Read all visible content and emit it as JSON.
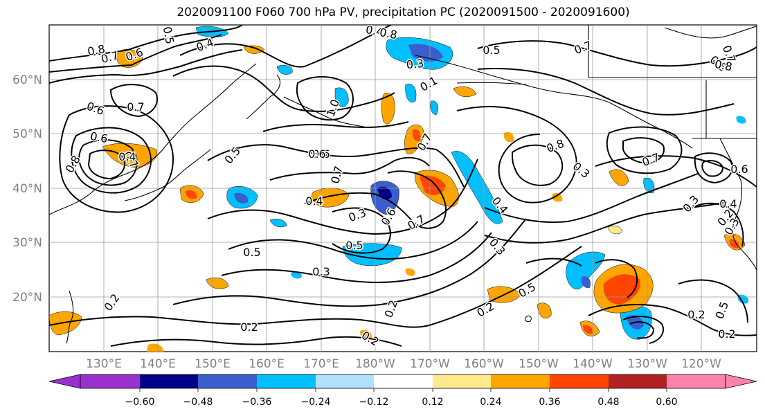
{
  "title": "2020091100 F060 700 hPa PV, precipitation PC (2020091500 - 2020091600)",
  "map": {
    "lat_labels": [
      "60°N",
      "50°N",
      "40°N",
      "30°N",
      "20°N"
    ],
    "lon_labels": [
      "130°E",
      "140°E",
      "150°E",
      "160°E",
      "170°E",
      "180°W",
      "170°W",
      "160°W",
      "150°W",
      "140°W",
      "130°W",
      "120°W"
    ],
    "contour_labels": [
      "0.8",
      "0.7",
      "0.6",
      "0.5",
      "0.4",
      "0.6",
      "0.8",
      "0.7",
      "0.6",
      "0.7",
      "0.5",
      "0.4",
      "0.4",
      "0.3",
      "0.1",
      "1.0",
      "0.6",
      "0.8",
      "0.7",
      "0.7",
      "0.4",
      "0.3",
      "0.5",
      "0.3",
      "0.6",
      "0.7",
      "0.5",
      "0.5",
      "0.2",
      "0.2",
      "0.2",
      "0.2",
      "0.2",
      "0.2",
      "0.2",
      "0.3",
      "0.3",
      "0.6",
      "0.7",
      "0.8",
      "0.4",
      "0.5",
      "0.2",
      "0.6",
      "0.8",
      "0.7",
      "0.6",
      "0.4",
      "0.3",
      "0.7",
      "0.3",
      "0.5"
    ]
  },
  "colorbar": {
    "ticks": [
      "−0.60",
      "−0.48",
      "−0.36",
      "−0.24",
      "−0.12",
      "0.12",
      "0.24",
      "0.36",
      "0.48",
      "0.60"
    ],
    "colors": [
      "#9932cc",
      "#00008b",
      "#3a5fcd",
      "#00bfff",
      "#b0e2ff",
      "#ffffff",
      "#ffe98a",
      "#ffa500",
      "#ff4500",
      "#b22222",
      "#ff82ab"
    ]
  }
}
